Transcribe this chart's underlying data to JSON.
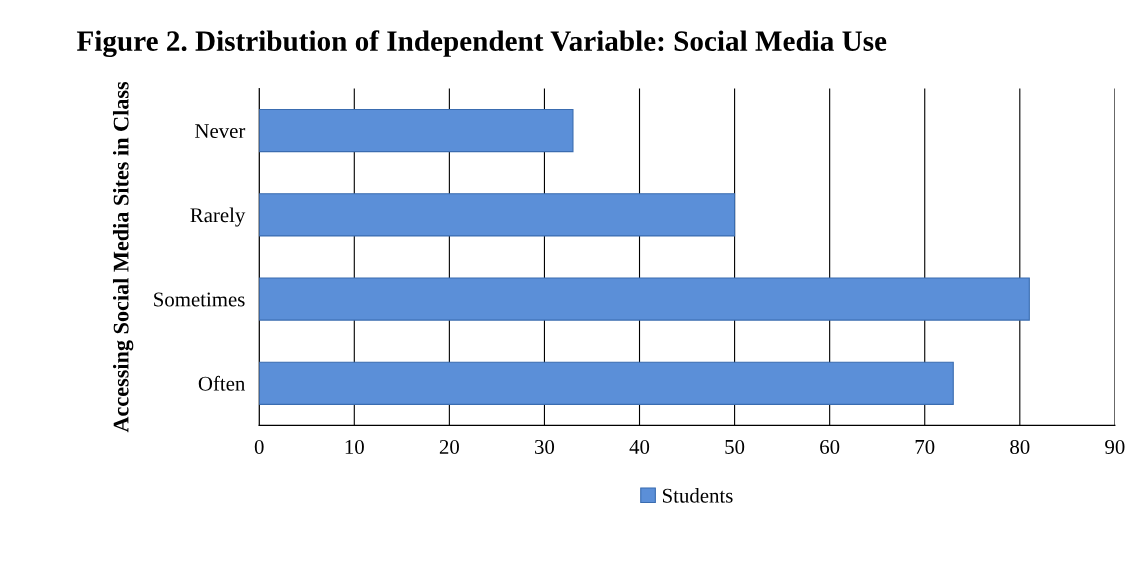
{
  "chart_data": {
    "type": "bar",
    "orientation": "horizontal",
    "title": "Figure 2. Distribution of Independent Variable: Social Media Use",
    "ylabel": "Accessing Social Media Sites in Class",
    "categories": [
      "Never",
      "Rarely",
      "Sometimes",
      "Often"
    ],
    "series": [
      {
        "name": "Students",
        "color": "#5b8fd8",
        "values": [
          33,
          50,
          81,
          73
        ]
      }
    ],
    "xlim": [
      0,
      90
    ],
    "xticks": [
      0,
      10,
      20,
      30,
      40,
      50,
      60,
      70,
      80,
      90
    ],
    "grid": "x",
    "legend": "bottom"
  }
}
